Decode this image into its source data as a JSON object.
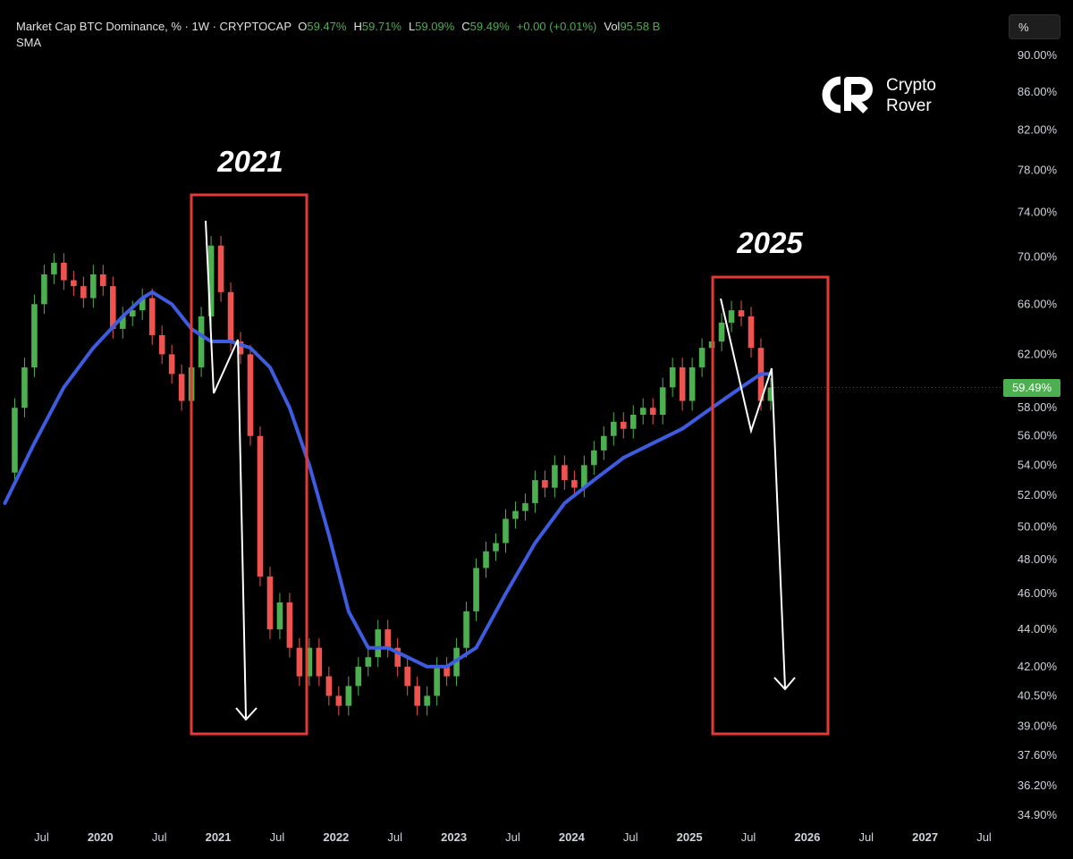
{
  "header": {
    "title": "Market Cap BTC Dominance, % · 1W · CRYPTOCAP",
    "open_label": "O",
    "open": "59.47%",
    "high_label": "H",
    "high": "59.71%",
    "low_label": "L",
    "low": "59.09%",
    "close_label": "C",
    "close": "59.49%",
    "change": "+0.00 (+0.01%)",
    "vol_label": "Vol",
    "vol": "95.58 B",
    "indicator": "SMA"
  },
  "scale_button": "%",
  "watermark": {
    "line1": "Crypto",
    "line2": "Rover"
  },
  "annotations": {
    "box1_label": "2021",
    "box2_label": "2025"
  },
  "last_price_label": "59.49%",
  "colors": {
    "up": "#4caf50",
    "down": "#ef5350",
    "sma": "#3e5ce0",
    "box": "#e53935",
    "arrow": "#ffffff",
    "background": "#000000"
  },
  "chart_data": {
    "type": "line",
    "title": "Market Cap BTC Dominance, %",
    "y_scale": "log",
    "ylim": [
      34.9,
      90.0
    ],
    "y_ticks": [
      "90.00%",
      "86.00%",
      "82.00%",
      "78.00%",
      "74.00%",
      "70.00%",
      "66.00%",
      "62.00%",
      "58.00%",
      "56.00%",
      "54.00%",
      "52.00%",
      "50.00%",
      "48.00%",
      "46.00%",
      "44.00%",
      "42.00%",
      "40.50%",
      "39.00%",
      "37.60%",
      "36.20%",
      "34.90%"
    ],
    "x_ticks": [
      "Jul",
      "2020",
      "Jul",
      "2021",
      "Jul",
      "2022",
      "Jul",
      "2023",
      "Jul",
      "2024",
      "Jul",
      "2025",
      "Jul",
      "2026",
      "Jul",
      "2027",
      "Jul"
    ],
    "x_tick_dates": [
      "2019-07",
      "2020-01",
      "2020-07",
      "2021-01",
      "2021-07",
      "2022-01",
      "2022-07",
      "2023-01",
      "2023-07",
      "2024-01",
      "2024-07",
      "2025-01",
      "2025-07",
      "2026-01",
      "2026-07",
      "2027-01",
      "2027-07"
    ],
    "x_range": [
      "2019-03",
      "2027-09"
    ],
    "series": [
      {
        "name": "Market Cap BTC Dominance",
        "dates": [
          "2019-03",
          "2019-04",
          "2019-05",
          "2019-06",
          "2019-07",
          "2019-08",
          "2019-09",
          "2019-10",
          "2019-11",
          "2019-12",
          "2020-01",
          "2020-02",
          "2020-03",
          "2020-04",
          "2020-05",
          "2020-06",
          "2020-07",
          "2020-08",
          "2020-09",
          "2020-10",
          "2020-11",
          "2020-12",
          "2021-01",
          "2021-02",
          "2021-03",
          "2021-04",
          "2021-05",
          "2021-06",
          "2021-07",
          "2021-08",
          "2021-09",
          "2021-10",
          "2021-11",
          "2021-12",
          "2022-01",
          "2022-02",
          "2022-03",
          "2022-04",
          "2022-05",
          "2022-06",
          "2022-07",
          "2022-08",
          "2022-09",
          "2022-10",
          "2022-11",
          "2022-12",
          "2023-01",
          "2023-02",
          "2023-03",
          "2023-04",
          "2023-05",
          "2023-06",
          "2023-07",
          "2023-08",
          "2023-09",
          "2023-10",
          "2023-11",
          "2023-12",
          "2024-01",
          "2024-02",
          "2024-03",
          "2024-04",
          "2024-05",
          "2024-06",
          "2024-07",
          "2024-08",
          "2024-09",
          "2024-10",
          "2024-11",
          "2024-12",
          "2025-01",
          "2025-02",
          "2025-03",
          "2025-04",
          "2025-05",
          "2025-06",
          "2025-07",
          "2025-08",
          "2025-09"
        ],
        "values": [
          53.5,
          58,
          61,
          66,
          68.5,
          69.5,
          68,
          67.5,
          66.5,
          68.5,
          67.5,
          64,
          65,
          65.5,
          66.5,
          63.5,
          62,
          60.5,
          58.5,
          61,
          65,
          71,
          67,
          63,
          62,
          56,
          47,
          44,
          45.5,
          43,
          41.5,
          43,
          41.5,
          40.5,
          40,
          41,
          42,
          42.5,
          44,
          43,
          42,
          41,
          40,
          40.5,
          42,
          41.5,
          43,
          45,
          47.5,
          48.5,
          49,
          50.5,
          51,
          51.5,
          53,
          52.5,
          54,
          53,
          52.5,
          54,
          55,
          56,
          57,
          56.5,
          57.5,
          58,
          57.5,
          59.5,
          61,
          58.5,
          61,
          62.5,
          63,
          64.5,
          65.5,
          65,
          62.5,
          58.5,
          59.49
        ]
      },
      {
        "name": "SMA",
        "dates": [
          "2019-03",
          "2019-06",
          "2019-09",
          "2019-12",
          "2020-03",
          "2020-05",
          "2020-06",
          "2020-08",
          "2020-10",
          "2020-12",
          "2021-02",
          "2021-04",
          "2021-06",
          "2021-08",
          "2021-10",
          "2021-12",
          "2022-02",
          "2022-04",
          "2022-06",
          "2022-08",
          "2022-10",
          "2022-12",
          "2023-03",
          "2023-06",
          "2023-09",
          "2023-12",
          "2024-03",
          "2024-06",
          "2024-09",
          "2024-12",
          "2025-03",
          "2025-06",
          "2025-08",
          "2025-09"
        ],
        "values": [
          51.5,
          55.5,
          59.5,
          62.5,
          65,
          66.5,
          67,
          66,
          64,
          63,
          63,
          62.5,
          61,
          58,
          54,
          49.5,
          45,
          43,
          43,
          42.5,
          42,
          42,
          43,
          46,
          49,
          51.5,
          53,
          54.5,
          55.5,
          56.5,
          58,
          59.5,
          60.5,
          60.5
        ]
      }
    ]
  }
}
